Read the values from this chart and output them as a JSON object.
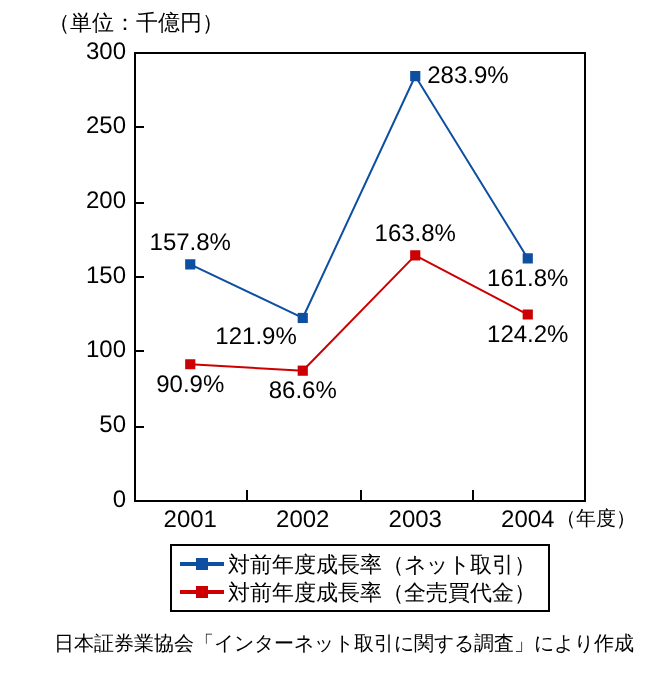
{
  "chart_data": {
    "type": "line",
    "ylabel": "（単位：千億円）",
    "xlabel": "（年度）",
    "categories": [
      "2001",
      "2002",
      "2003",
      "2004"
    ],
    "series": [
      {
        "name": "対前年度成長率（ネット取引）",
        "color": "#0d4fa0",
        "values": [
          157.8,
          121.9,
          283.9,
          161.8
        ],
        "value_labels": [
          "157.8%",
          "121.9%",
          "283.9%",
          "161.8%"
        ]
      },
      {
        "name": "対前年度成長率（全売買代金）",
        "color": "#cc0000",
        "values": [
          90.9,
          86.6,
          163.8,
          124.2
        ],
        "value_labels": [
          "90.9%",
          "86.6%",
          "163.8%",
          "124.2%"
        ]
      }
    ],
    "ylim": [
      0,
      300
    ],
    "yticks": [
      0,
      50,
      100,
      150,
      200,
      250,
      300
    ],
    "legend": "bottom",
    "marker": "square",
    "line_style": "solid",
    "annotations": [
      "日本証券業協会「インターネット取引に関する調査」により作成"
    ]
  }
}
